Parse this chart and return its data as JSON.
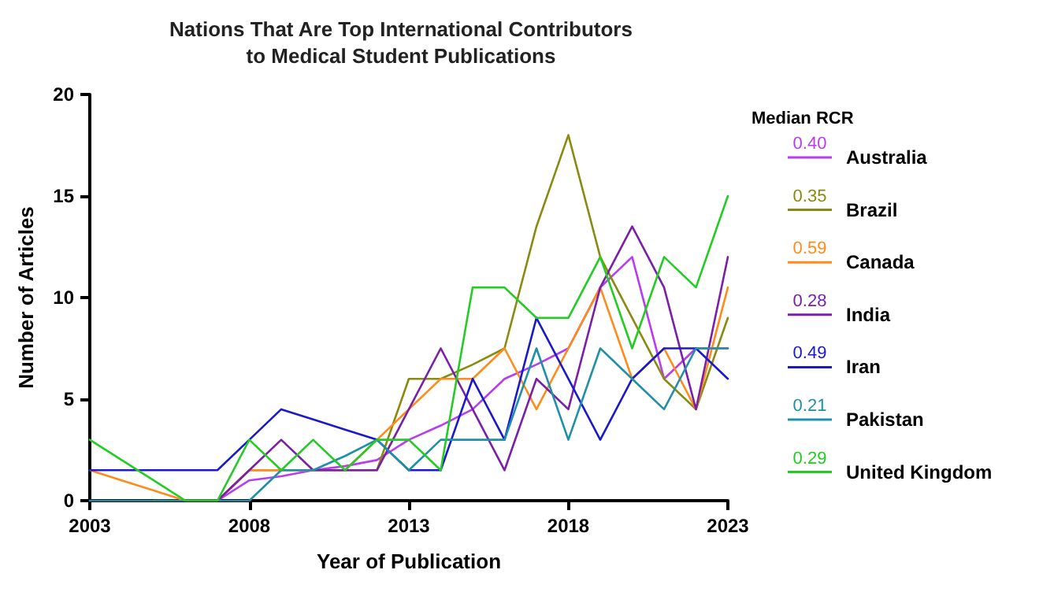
{
  "chart_data": {
    "type": "line",
    "title": "Nations That Are Top International Contributors\nto Medical Student Publications",
    "xlabel": "Year of Publication",
    "ylabel": "Number of Articles",
    "legend_title": "Median RCR",
    "annotations": [
      "0.40",
      "0.35",
      "0.59",
      "0.28",
      "0.49",
      "0.21",
      "0.29"
    ],
    "x": [
      2003,
      2004,
      2005,
      2006,
      2007,
      2008,
      2009,
      2010,
      2011,
      2012,
      2013,
      2014,
      2015,
      2016,
      2017,
      2018,
      2019,
      2020,
      2021,
      2022,
      2023
    ],
    "series": [
      {
        "name": "Australia",
        "color": "#b83cf0",
        "values": [
          null,
          null,
          null,
          0,
          0,
          1,
          1.2,
          1.5,
          1.7,
          2,
          3,
          3.7,
          4.5,
          6,
          6.7,
          7.5,
          10.5,
          12,
          6,
          7.5,
          7.5
        ]
      },
      {
        "name": "Brazil",
        "color": "#8a8a10",
        "values": [
          null,
          null,
          0,
          0,
          0,
          1.5,
          1.5,
          1.5,
          1.5,
          1.5,
          6,
          6,
          6.7,
          7.5,
          13.5,
          18,
          12,
          9,
          6,
          4.5,
          9
        ]
      },
      {
        "name": "Canada",
        "color": "#ff8c1a",
        "values": [
          1.5,
          1,
          0.5,
          0,
          0,
          1.5,
          1.5,
          1.5,
          1.5,
          3,
          4.5,
          6,
          6,
          7.5,
          4.5,
          7.5,
          10.5,
          6,
          7.5,
          4.5,
          10.5
        ]
      },
      {
        "name": "India",
        "color": "#7a1fa8",
        "values": [
          null,
          null,
          null,
          0,
          0,
          1.5,
          3,
          1.5,
          1.5,
          1.5,
          4.5,
          7.5,
          4.5,
          1.5,
          6,
          4.5,
          10.5,
          13.5,
          10.5,
          4.5,
          12
        ]
      },
      {
        "name": "Iran",
        "color": "#1a1acc",
        "values": [
          1.5,
          1.5,
          1.5,
          1.5,
          1.5,
          3,
          4.5,
          4,
          3.5,
          3,
          1.5,
          1.5,
          6,
          3,
          9,
          6,
          3,
          6,
          7.5,
          7.5,
          6
        ]
      },
      {
        "name": "Pakistan",
        "color": "#2090a8",
        "values": [
          0,
          0,
          0,
          0,
          0,
          0,
          1.5,
          1.5,
          2.2,
          3,
          1.5,
          3,
          3,
          3,
          7.5,
          3,
          7.5,
          6,
          4.5,
          7.5,
          7.5
        ]
      },
      {
        "name": "United Kingdom",
        "color": "#22cc22",
        "values": [
          3,
          2,
          1,
          0,
          0,
          3,
          1.5,
          3,
          1.5,
          3,
          3,
          1.5,
          10.5,
          10.5,
          9,
          9,
          12,
          7.5,
          12,
          10.5,
          15
        ]
      }
    ],
    "xlim": [
      2003,
      2023
    ],
    "xticks": [
      2003,
      2008,
      2013,
      2018,
      2023
    ],
    "ylim": [
      0,
      20
    ],
    "yticks": [
      0,
      5,
      10,
      15,
      20
    ],
    "grid": false,
    "legend": "right",
    "marker": "none",
    "line_style": "solid"
  }
}
